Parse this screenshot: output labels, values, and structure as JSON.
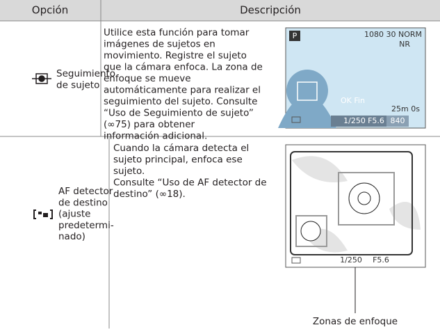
{
  "table": {
    "header": [
      "Opción",
      "Descripción"
    ],
    "rows": [
      {
        "option": [
          "Seguimiento",
          "de sujeto"
        ],
        "description": [
          "Utilice esta función para tomar",
          "imágenes de sujetos en",
          "movimiento. Registre el sujeto",
          "que la cámara enfoca. La zona de",
          "enfoque se mueve",
          "automáticamente para realizar el",
          "seguimiento del sujeto. Consulte",
          "“Uso de Seguimiento de sujeto”",
          "(∞75) para obtener",
          "información adicional."
        ],
        "screen": {
          "mode": "P",
          "top_right": "1080 30 NORM",
          "nr": "NR",
          "ok": "OK Fin",
          "time": "25m 0s",
          "shutter": "1/250",
          "aperture": "F5.6",
          "count": "840"
        }
      },
      {
        "option": [
          "AF detector",
          "de destino",
          "(ajuste",
          "predetermi-",
          "nado)"
        ],
        "description": [
          "Cuando la cámara detecta el",
          "sujeto principal, enfoca ese",
          "sujeto.",
          "Consulte “Uso de AF detector de",
          "destino” (∞18)."
        ],
        "screen": {
          "shutter": "1/250",
          "aperture": "F5.6"
        },
        "caption": "Zonas de enfoque"
      }
    ]
  }
}
